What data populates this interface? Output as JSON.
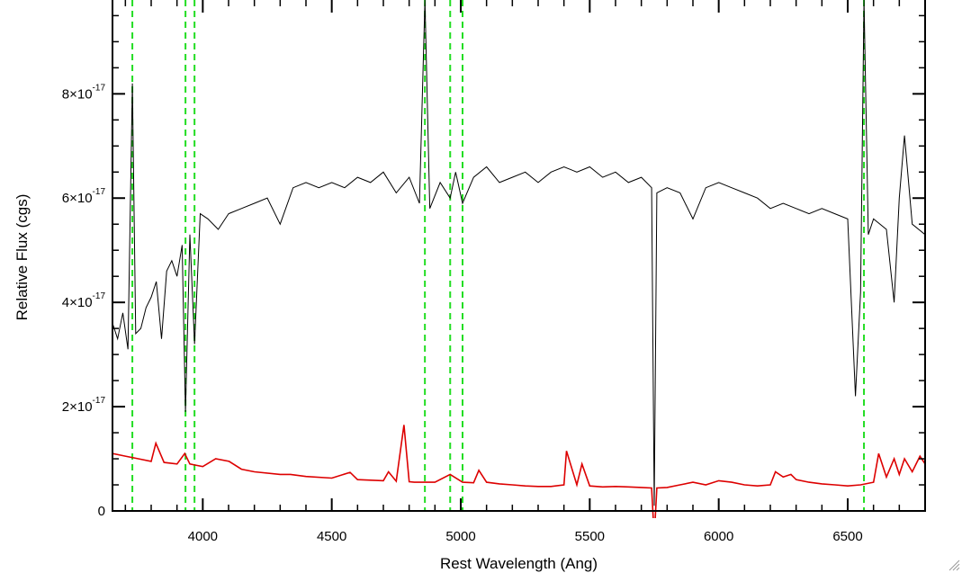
{
  "chart_data": {
    "type": "line",
    "title": "",
    "xlabel": "Rest Wavelength (Ang)",
    "ylabel": "Relative Flux (cgs)",
    "xlim": [
      3650,
      6800
    ],
    "ylim": [
      0,
      9.8e-17
    ],
    "x_ticks": [
      {
        "value": 4000,
        "label": "4000"
      },
      {
        "value": 4500,
        "label": "4500"
      },
      {
        "value": 5000,
        "label": "5000"
      },
      {
        "value": 5500,
        "label": "5500"
      },
      {
        "value": 6000,
        "label": "6000"
      },
      {
        "value": 6500,
        "label": "6500"
      }
    ],
    "y_ticks": [
      {
        "value": 0,
        "mantissa": "0",
        "exponent": ""
      },
      {
        "value": 2e-17,
        "mantissa": "2×10",
        "exponent": "-17"
      },
      {
        "value": 4e-17,
        "mantissa": "4×10",
        "exponent": "-17"
      },
      {
        "value": 6e-17,
        "mantissa": "6×10",
        "exponent": "-17"
      },
      {
        "value": 8e-17,
        "mantissa": "8×10",
        "exponent": "-17"
      }
    ],
    "emission_line_markers": [
      3727,
      3933,
      3968,
      4861,
      4959,
      5007,
      6563
    ],
    "series": [
      {
        "color": "#000000",
        "x": [
          3650,
          3670,
          3690,
          3710,
          3727,
          3740,
          3760,
          3780,
          3800,
          3820,
          3840,
          3860,
          3880,
          3900,
          3920,
          3933,
          3950,
          3968,
          3990,
          4020,
          4060,
          4100,
          4150,
          4200,
          4250,
          4300,
          4350,
          4400,
          4450,
          4500,
          4550,
          4600,
          4650,
          4700,
          4750,
          4800,
          4840,
          4861,
          4880,
          4920,
          4959,
          4980,
          5007,
          5050,
          5100,
          5150,
          5200,
          5250,
          5300,
          5350,
          5400,
          5450,
          5500,
          5550,
          5600,
          5650,
          5700,
          5740,
          5750,
          5760,
          5800,
          5850,
          5900,
          5950,
          6000,
          6050,
          6100,
          6150,
          6200,
          6250,
          6300,
          6350,
          6400,
          6450,
          6500,
          6530,
          6550,
          6563,
          6580,
          6600,
          6650,
          6680,
          6700,
          6720,
          6750,
          6800
        ],
        "y": [
          3.6e-17,
          3.3e-17,
          3.8e-17,
          3.1e-17,
          8.2e-17,
          3.4e-17,
          3.5e-17,
          3.9e-17,
          4.1e-17,
          4.4e-17,
          3.3e-17,
          4.6e-17,
          4.8e-17,
          4.5e-17,
          5.1e-17,
          1.9e-17,
          5.3e-17,
          3.2e-17,
          5.7e-17,
          5.6e-17,
          5.4e-17,
          5.7e-17,
          5.8e-17,
          5.9e-17,
          6e-17,
          5.5e-17,
          6.2e-17,
          6.3e-17,
          6.2e-17,
          6.3e-17,
          6.2e-17,
          6.4e-17,
          6.3e-17,
          6.5e-17,
          6.1e-17,
          6.4e-17,
          5.9e-17,
          9.8e-17,
          5.8e-17,
          6.3e-17,
          6e-17,
          6.5e-17,
          5.9e-17,
          6.4e-17,
          6.6e-17,
          6.3e-17,
          6.4e-17,
          6.5e-17,
          6.3e-17,
          6.5e-17,
          6.6e-17,
          6.5e-17,
          6.6e-17,
          6.4e-17,
          6.5e-17,
          6.3e-17,
          6.4e-17,
          6.2e-17,
          1e-18,
          6.1e-17,
          6.2e-17,
          6.1e-17,
          5.6e-17,
          6.2e-17,
          6.3e-17,
          6.2e-17,
          6.1e-17,
          6e-17,
          5.8e-17,
          5.9e-17,
          5.8e-17,
          5.7e-17,
          5.8e-17,
          5.7e-17,
          5.6e-17,
          2.2e-17,
          4.2e-17,
          9.8e-17,
          5.3e-17,
          5.6e-17,
          5.4e-17,
          4e-17,
          6e-17,
          7.2e-17,
          5.5e-17,
          5.3e-17
        ]
      },
      {
        "color": "#dd0000",
        "x": [
          3650,
          3700,
          3750,
          3800,
          3818,
          3850,
          3900,
          3930,
          3950,
          3970,
          4000,
          4050,
          4102,
          4150,
          4200,
          4300,
          4340,
          4400,
          4500,
          4571,
          4600,
          4700,
          4720,
          4750,
          4780,
          4800,
          4820,
          4861,
          4900,
          4959,
          5007,
          5050,
          5070,
          5100,
          5150,
          5200,
          5250,
          5300,
          5350,
          5400,
          5410,
          5450,
          5470,
          5500,
          5550,
          5600,
          5650,
          5700,
          5740,
          5750,
          5760,
          5800,
          5850,
          5900,
          5950,
          6000,
          6050,
          6100,
          6150,
          6200,
          6220,
          6250,
          6280,
          6300,
          6350,
          6400,
          6450,
          6500,
          6550,
          6600,
          6620,
          6650,
          6680,
          6700,
          6720,
          6750,
          6780,
          6800
        ],
        "y": [
          1.1e-17,
          1.05e-17,
          1e-17,
          9.5e-18,
          1.3e-17,
          9.3e-18,
          9e-18,
          1.1e-17,
          9e-18,
          8.8e-18,
          8.5e-18,
          1e-17,
          9.5e-18,
          8e-18,
          7.5e-18,
          7e-18,
          7e-18,
          6.6e-18,
          6.3e-18,
          7.4e-18,
          6e-18,
          5.8e-18,
          7.5e-18,
          5.7e-18,
          1.65e-17,
          5.6e-18,
          5.5e-18,
          5.5e-18,
          5.5e-18,
          7e-18,
          5.5e-18,
          5.4e-18,
          7.8e-18,
          5.5e-18,
          5.2e-18,
          5e-18,
          4.8e-18,
          4.7e-18,
          4.7e-18,
          5e-18,
          1.15e-17,
          5e-18,
          9e-18,
          4.8e-18,
          4.6e-18,
          4.7e-18,
          4.6e-18,
          4.5e-18,
          4.4e-18,
          -5e-18,
          4.4e-18,
          4.5e-18,
          5e-18,
          5.5e-18,
          5e-18,
          5.8e-18,
          5.5e-18,
          5e-18,
          4.8e-18,
          5e-18,
          7.5e-18,
          6.5e-18,
          7e-18,
          6e-18,
          5.5e-18,
          5.2e-18,
          5e-18,
          4.8e-18,
          5e-18,
          5.5e-18,
          1.1e-17,
          6.5e-18,
          1e-17,
          7e-18,
          1e-17,
          7.5e-18,
          1.05e-17,
          9e-18
        ]
      }
    ]
  }
}
